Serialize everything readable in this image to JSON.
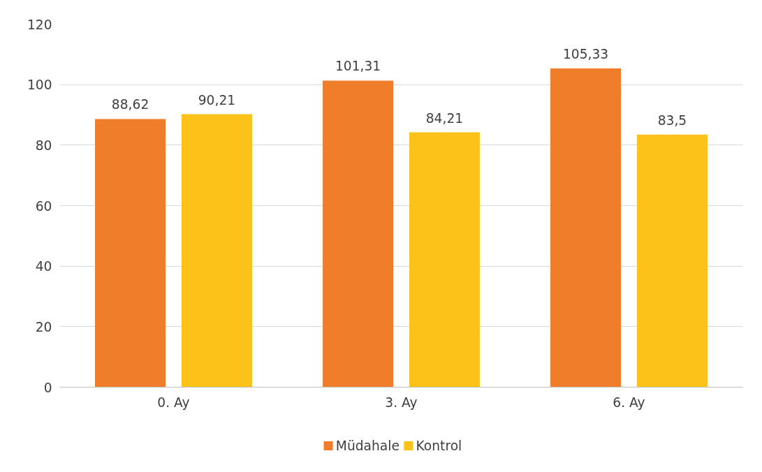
{
  "chart_data": {
    "type": "bar",
    "categories": [
      "0. Ay",
      "3. Ay",
      "6. Ay"
    ],
    "series": [
      {
        "name": "Müdahale",
        "color": "#f07d2a",
        "values": [
          88.62,
          101.31,
          105.33
        ],
        "value_labels": [
          "88,62",
          "101,31",
          "105,33"
        ]
      },
      {
        "name": "Kontrol",
        "color": "#fcc21a",
        "values": [
          90.21,
          84.21,
          83.5
        ],
        "value_labels": [
          "90,21",
          "84,21",
          "83,5"
        ]
      }
    ],
    "ylim": [
      0,
      120
    ],
    "yticks": [
      0,
      20,
      40,
      60,
      80,
      100,
      120
    ],
    "grid": "y",
    "legend": "bottom"
  }
}
